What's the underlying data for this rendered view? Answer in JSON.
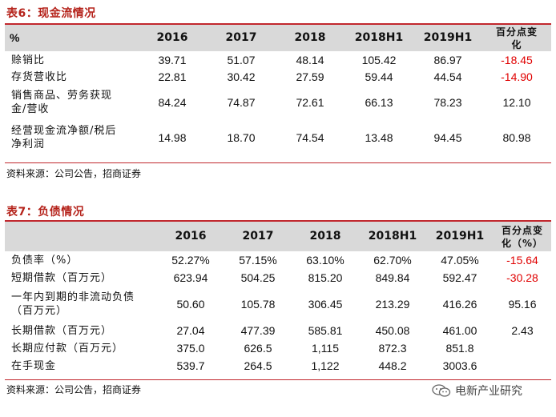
{
  "table6": {
    "title": "表6：现金流情况",
    "headers": [
      "%",
      "2016",
      "2017",
      "2018",
      "2018H1",
      "2019H1",
      "百分点变化"
    ],
    "rows": [
      {
        "label": "赊销比",
        "values": [
          "39.71",
          "51.07",
          "48.14",
          "105.42",
          "86.97",
          "-18.45"
        ],
        "neg": true
      },
      {
        "label": "存货营收比",
        "values": [
          "22.81",
          "30.42",
          "27.59",
          "59.44",
          "44.54",
          "-14.90"
        ],
        "neg": true
      },
      {
        "label": "销售商品、劳务获现金/营收",
        "values": [
          "84.24",
          "74.87",
          "72.61",
          "66.13",
          "78.23",
          "12.10"
        ],
        "neg": false
      },
      {
        "label": "经营现金流净额/税后净利润",
        "values": [
          "14.98",
          "18.70",
          "74.54",
          "13.48",
          "94.45",
          "80.98"
        ],
        "neg": false
      }
    ],
    "source": "资料来源：公司公告，招商证券"
  },
  "table7": {
    "title": "表7：负债情况",
    "headers": [
      "",
      "2016",
      "2017",
      "2018",
      "2018H1",
      "2019H1",
      "百分点变化（%）"
    ],
    "rows": [
      {
        "label": "负债率（%）",
        "values": [
          "52.27%",
          "57.15%",
          "63.10%",
          "62.70%",
          "47.05%",
          "-15.64"
        ],
        "neg": true
      },
      {
        "label": "短期借款（百万元）",
        "values": [
          "623.94",
          "504.25",
          "815.20",
          "849.84",
          "592.47",
          "-30.28"
        ],
        "neg": true
      },
      {
        "label": "一年内到期的非流动负债（百万元）",
        "values": [
          "50.60",
          "105.78",
          "306.45",
          "213.29",
          "416.26",
          "95.16"
        ],
        "neg": false
      },
      {
        "label": "长期借款（百万元）",
        "values": [
          "27.04",
          "477.39",
          "585.81",
          "450.08",
          "461.00",
          "2.43"
        ],
        "neg": false
      },
      {
        "label": "长期应付款（百万元）",
        "values": [
          "375.0",
          "626.5",
          "1,115",
          "872.3",
          "851.8",
          ""
        ],
        "neg": false
      },
      {
        "label": "在手现金",
        "values": [
          "539.7",
          "264.5",
          "1,122",
          "448.2",
          "3003.6",
          ""
        ],
        "neg": false
      }
    ],
    "source": "资料来源：公司公告，招商证券"
  },
  "watermark": "电新产业研究",
  "colors": {
    "accent": "#c1272d",
    "negative": "#e00000",
    "header_bg": "#d9d9d9"
  }
}
